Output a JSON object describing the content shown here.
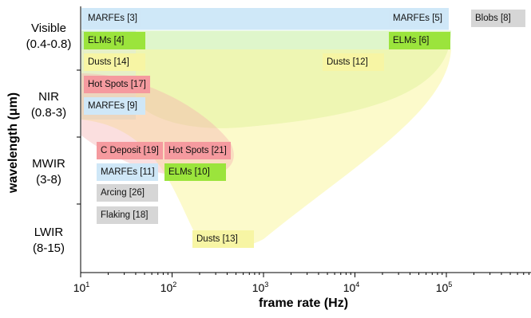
{
  "axes": {
    "xlabel": "frame rate (Hz)",
    "ylabel": "wavelength (μm)",
    "xscale": "log",
    "xlim": [
      10,
      700000
    ],
    "xticks": [
      {
        "base": "10",
        "exp": "1"
      },
      {
        "base": "10",
        "exp": "2"
      },
      {
        "base": "10",
        "exp": "3"
      },
      {
        "base": "10",
        "exp": "4"
      },
      {
        "base": "10",
        "exp": "5"
      }
    ],
    "ybands": [
      {
        "name": "Visible",
        "range": "(0.4-0.8)"
      },
      {
        "name": "NIR",
        "range": "(0.8-3)"
      },
      {
        "name": "MWIR",
        "range": "(3-8)"
      },
      {
        "name": "LWIR",
        "range": "(8-15)"
      }
    ]
  },
  "labels": [
    {
      "text": "MARFEs [3]",
      "category": "MARFEs"
    },
    {
      "text": "MARFEs [5]",
      "category": "MARFEs"
    },
    {
      "text": "Blobs [8]",
      "category": "other"
    },
    {
      "text": "ELMs [4]",
      "category": "ELMs"
    },
    {
      "text": "ELMs [6]",
      "category": "ELMs"
    },
    {
      "text": "Dusts [14]",
      "category": "Dusts"
    },
    {
      "text": "Dusts [12]",
      "category": "Dusts"
    },
    {
      "text": "Hot Spots [17]",
      "category": "HotSpots"
    },
    {
      "text": "MARFEs [9]",
      "category": "MARFEs"
    },
    {
      "text": "C Deposit [19]",
      "category": "HotSpots"
    },
    {
      "text": "Hot Spots [21]",
      "category": "HotSpots"
    },
    {
      "text": "MARFEs [11]",
      "category": "MARFEs"
    },
    {
      "text": "ELMs [10]",
      "category": "ELMs"
    },
    {
      "text": "Arcing [26]",
      "category": "other"
    },
    {
      "text": "Flaking [18]",
      "category": "other"
    },
    {
      "text": "Dusts [13]",
      "category": "Dusts"
    }
  ],
  "colors": {
    "MARFEs": "#cfe7f7",
    "ELMs": "#9be43c",
    "Dusts": "#f7f5a4",
    "HotSpots": "#f59a9f",
    "other": "#d6d6d6",
    "region_marfes": "#bfe0f6",
    "region_elms": "#c9f0a8",
    "region_dusts": "#f9f6a0",
    "region_hotspots": "#f5aeae",
    "axis": "#000000"
  }
}
